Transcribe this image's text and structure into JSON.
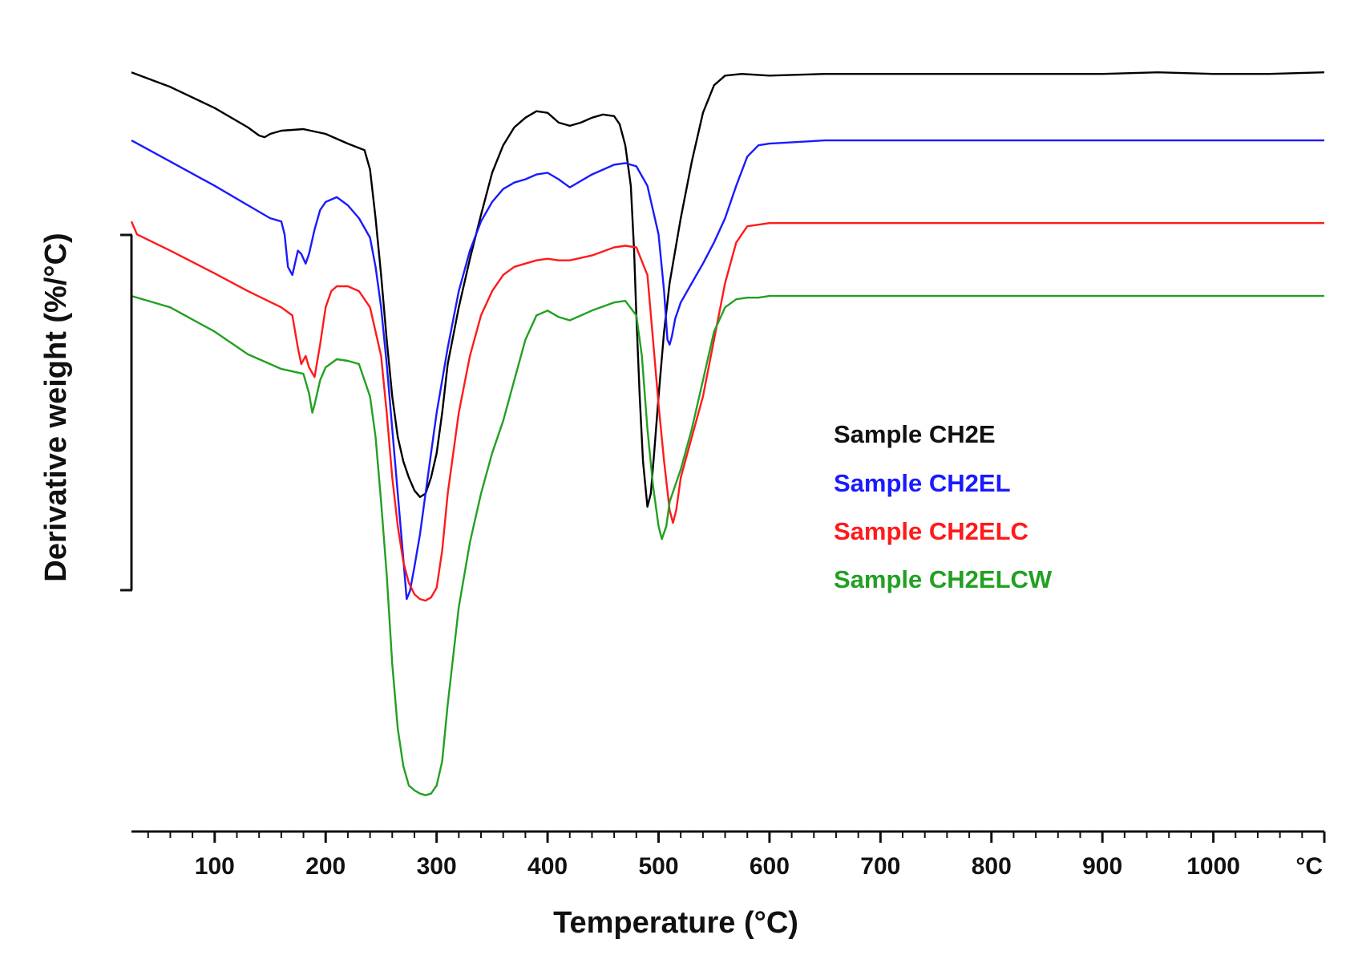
{
  "chart_data": {
    "type": "line",
    "title": "",
    "xlabel": "Temperature (°C)",
    "ylabel": "Derivative weight (%/°C)",
    "xlim": [
      25,
      1100
    ],
    "ylim": [
      -3.3,
      1.4
    ],
    "x_major_ticks": [
      100,
      200,
      300,
      400,
      500,
      600,
      700,
      800,
      900,
      1000
    ],
    "x_minor_step": 20,
    "x_tick_labels": [
      "100",
      "200",
      "300",
      "400",
      "500",
      "600",
      "700",
      "800",
      "900",
      "1000"
    ],
    "x_unit_label": "°C",
    "scale_bar": [
      -1.5,
      0.4
    ],
    "grid": false,
    "legend_position": "center-right",
    "series": [
      {
        "name": "Sample CH2E",
        "color": "#000000",
        "x": [
          25,
          60,
          100,
          130,
          140,
          145,
          150,
          160,
          180,
          200,
          220,
          235,
          240,
          245,
          250,
          255,
          260,
          265,
          270,
          275,
          280,
          285,
          290,
          295,
          300,
          305,
          310,
          320,
          330,
          340,
          350,
          360,
          370,
          380,
          390,
          400,
          410,
          420,
          430,
          440,
          450,
          460,
          465,
          470,
          475,
          478,
          480,
          483,
          486,
          490,
          493,
          496,
          500,
          505,
          510,
          520,
          530,
          540,
          550,
          560,
          575,
          600,
          650,
          700,
          750,
          800,
          850,
          900,
          950,
          1000,
          1050,
          1100
        ],
        "y": [
          1.3,
          1.21,
          1.08,
          0.96,
          0.91,
          0.9,
          0.92,
          0.94,
          0.95,
          0.92,
          0.86,
          0.82,
          0.7,
          0.4,
          0.05,
          -0.35,
          -0.7,
          -0.95,
          -1.1,
          -1.2,
          -1.28,
          -1.32,
          -1.3,
          -1.2,
          -1.05,
          -0.8,
          -0.5,
          -0.15,
          0.15,
          0.42,
          0.68,
          0.85,
          0.96,
          1.02,
          1.06,
          1.05,
          0.99,
          0.97,
          0.99,
          1.02,
          1.04,
          1.03,
          0.98,
          0.85,
          0.6,
          0.2,
          -0.2,
          -0.7,
          -1.1,
          -1.38,
          -1.3,
          -1.05,
          -0.7,
          -0.3,
          0.0,
          0.4,
          0.75,
          1.05,
          1.22,
          1.28,
          1.29,
          1.28,
          1.29,
          1.29,
          1.29,
          1.29,
          1.29,
          1.29,
          1.3,
          1.29,
          1.29,
          1.3
        ]
      },
      {
        "name": "Sample CH2EL",
        "color": "#1a1aff",
        "x": [
          25,
          60,
          100,
          130,
          150,
          160,
          163,
          166,
          170,
          175,
          178,
          182,
          185,
          190,
          195,
          200,
          210,
          220,
          230,
          240,
          245,
          250,
          255,
          260,
          265,
          270,
          273,
          276,
          280,
          285,
          290,
          295,
          300,
          310,
          320,
          330,
          340,
          350,
          360,
          370,
          380,
          390,
          400,
          410,
          420,
          430,
          440,
          450,
          460,
          470,
          480,
          490,
          500,
          505,
          508,
          510,
          512,
          515,
          520,
          530,
          540,
          550,
          560,
          570,
          580,
          590,
          600,
          650,
          700,
          750,
          800,
          850,
          900,
          950,
          1000,
          1050,
          1100
        ],
        "y": [
          0.88,
          0.75,
          0.6,
          0.48,
          0.4,
          0.38,
          0.3,
          0.1,
          0.05,
          0.2,
          0.18,
          0.12,
          0.18,
          0.33,
          0.45,
          0.5,
          0.53,
          0.48,
          0.4,
          0.28,
          0.1,
          -0.15,
          -0.5,
          -0.9,
          -1.3,
          -1.7,
          -1.95,
          -1.9,
          -1.75,
          -1.55,
          -1.3,
          -1.05,
          -0.8,
          -0.4,
          -0.05,
          0.2,
          0.38,
          0.5,
          0.58,
          0.62,
          0.64,
          0.67,
          0.68,
          0.64,
          0.59,
          0.63,
          0.67,
          0.7,
          0.73,
          0.74,
          0.72,
          0.6,
          0.3,
          -0.05,
          -0.35,
          -0.38,
          -0.33,
          -0.22,
          -0.12,
          0.0,
          0.12,
          0.25,
          0.4,
          0.6,
          0.78,
          0.85,
          0.86,
          0.88,
          0.88,
          0.88,
          0.88,
          0.88,
          0.88,
          0.88,
          0.88,
          0.88,
          0.88
        ]
      },
      {
        "name": "Sample CH2ELC",
        "color": "#ff1a1a",
        "x": [
          25,
          30,
          60,
          100,
          130,
          160,
          170,
          175,
          178,
          182,
          185,
          190,
          195,
          200,
          205,
          210,
          220,
          230,
          240,
          250,
          255,
          260,
          265,
          270,
          275,
          280,
          285,
          290,
          295,
          300,
          305,
          310,
          320,
          330,
          340,
          350,
          360,
          370,
          380,
          390,
          400,
          410,
          420,
          440,
          460,
          470,
          480,
          490,
          495,
          500,
          505,
          510,
          513,
          516,
          520,
          530,
          540,
          550,
          560,
          570,
          580,
          590,
          600,
          650,
          700,
          750,
          800,
          850,
          900,
          950,
          1000,
          1050,
          1100
        ],
        "y": [
          0.38,
          0.3,
          0.2,
          0.06,
          -0.05,
          -0.15,
          -0.2,
          -0.4,
          -0.5,
          -0.45,
          -0.52,
          -0.58,
          -0.38,
          -0.15,
          -0.05,
          -0.02,
          -0.02,
          -0.05,
          -0.15,
          -0.45,
          -0.8,
          -1.2,
          -1.5,
          -1.72,
          -1.85,
          -1.92,
          -1.95,
          -1.96,
          -1.94,
          -1.88,
          -1.65,
          -1.3,
          -0.8,
          -0.45,
          -0.2,
          -0.05,
          0.05,
          0.1,
          0.12,
          0.14,
          0.15,
          0.14,
          0.14,
          0.17,
          0.22,
          0.23,
          0.22,
          0.05,
          -0.35,
          -0.75,
          -1.1,
          -1.4,
          -1.48,
          -1.4,
          -1.2,
          -0.95,
          -0.7,
          -0.35,
          0.0,
          0.25,
          0.35,
          0.36,
          0.37,
          0.37,
          0.37,
          0.37,
          0.37,
          0.37,
          0.37,
          0.37,
          0.37,
          0.37,
          0.37
        ]
      },
      {
        "name": "Sample CH2ELCW",
        "color": "#22a022",
        "x": [
          25,
          60,
          100,
          130,
          160,
          180,
          185,
          188,
          190,
          195,
          200,
          210,
          220,
          230,
          240,
          245,
          250,
          255,
          260,
          265,
          270,
          275,
          280,
          285,
          290,
          295,
          300,
          305,
          310,
          320,
          330,
          340,
          350,
          360,
          370,
          380,
          390,
          400,
          410,
          420,
          440,
          460,
          470,
          480,
          485,
          490,
          495,
          500,
          503,
          507,
          510,
          520,
          530,
          540,
          550,
          560,
          570,
          580,
          590,
          600,
          650,
          700,
          750,
          800,
          850,
          900,
          950,
          1000,
          1050,
          1100
        ],
        "y": [
          -0.08,
          -0.15,
          -0.3,
          -0.44,
          -0.53,
          -0.56,
          -0.68,
          -0.8,
          -0.75,
          -0.6,
          -0.52,
          -0.47,
          -0.48,
          -0.5,
          -0.7,
          -0.95,
          -1.35,
          -1.8,
          -2.35,
          -2.75,
          -2.98,
          -3.1,
          -3.13,
          -3.15,
          -3.16,
          -3.15,
          -3.1,
          -2.95,
          -2.6,
          -2.0,
          -1.6,
          -1.3,
          -1.05,
          -0.85,
          -0.6,
          -0.35,
          -0.2,
          -0.17,
          -0.21,
          -0.23,
          -0.17,
          -0.12,
          -0.11,
          -0.2,
          -0.45,
          -0.9,
          -1.25,
          -1.5,
          -1.58,
          -1.5,
          -1.35,
          -1.15,
          -0.9,
          -0.6,
          -0.3,
          -0.15,
          -0.1,
          -0.09,
          -0.09,
          -0.08,
          -0.08,
          -0.08,
          -0.08,
          -0.08,
          -0.08,
          -0.08,
          -0.08,
          -0.08,
          -0.08,
          -0.08
        ]
      }
    ]
  },
  "legend": {
    "entries": [
      {
        "label": "Sample CH2E",
        "color": "#111111"
      },
      {
        "label": "Sample CH2EL",
        "color": "#1a1aff"
      },
      {
        "label": "Sample CH2ELC",
        "color": "#ff1a1a"
      },
      {
        "label": "Sample CH2ELCW",
        "color": "#22a022"
      }
    ]
  }
}
